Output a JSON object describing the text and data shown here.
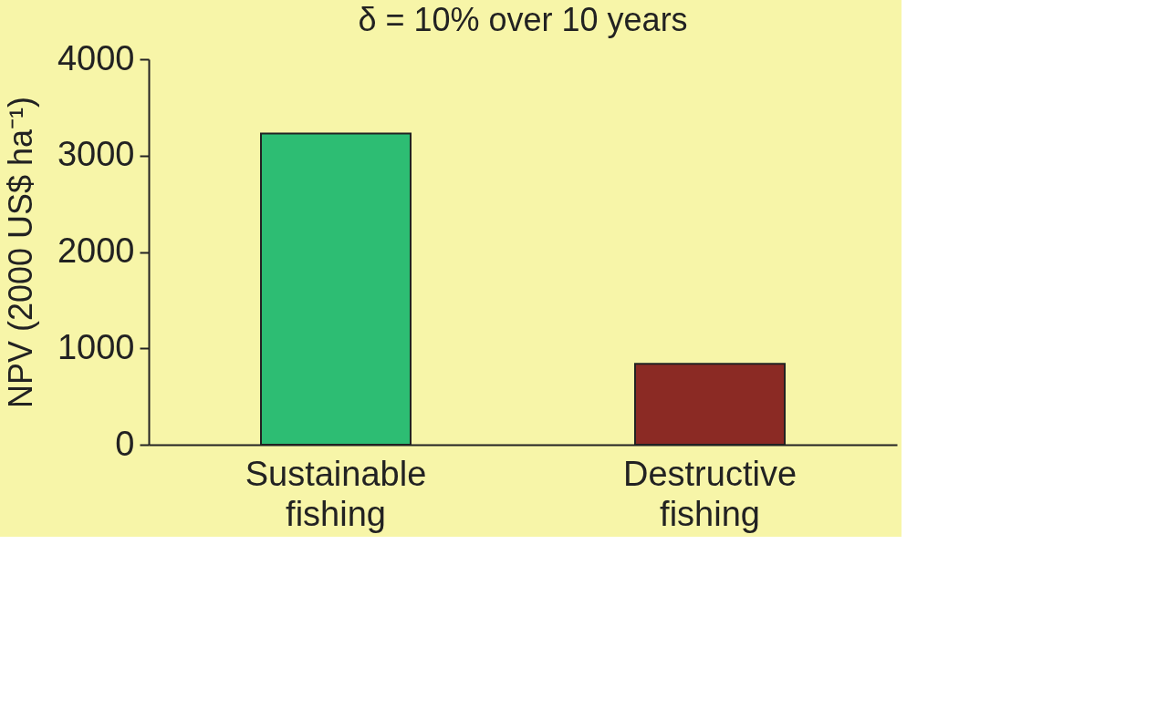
{
  "chart_data": {
    "type": "bar",
    "title": "δ = 10% over 10 years",
    "ylabel": "NPV (2000 US$ ha⁻¹)",
    "categories": [
      "Sustainable fishing",
      "Destructive fishing"
    ],
    "values": [
      3230,
      840
    ],
    "colors": [
      "#2dbd73",
      "#8b2a24"
    ],
    "ylim": [
      0,
      4000
    ],
    "yticks": [
      0,
      1000,
      2000,
      3000,
      4000
    ],
    "grid": false
  }
}
